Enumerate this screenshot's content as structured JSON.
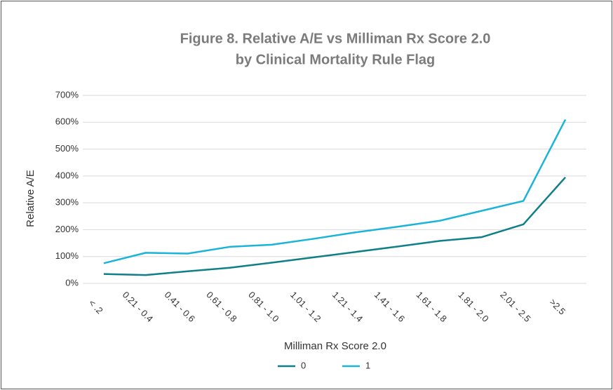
{
  "chart_data": {
    "type": "line",
    "title": [
      "Figure 8.  Relative A/E vs Milliman Rx Score 2.0",
      "by Clinical Mortality Rule Flag"
    ],
    "x_label": "Milliman Rx Score 2.0",
    "y_label": "Relative A/E",
    "categories": [
      "< .2",
      "0.21 - 0.4",
      "0.41 - 0.6",
      "0.61 - 0.8",
      "0.81 - 1.0",
      "1.01 - 1.2",
      "1.21 - 1.4",
      "1.41 - 1.6",
      "1.61 - 1.8",
      "1.81 - 2.0",
      "2.01 - 2.5",
      ">2.5"
    ],
    "series": [
      {
        "name": "0",
        "color": "#0f7f88",
        "values": [
          35,
          31,
          45,
          58,
          77,
          97,
          117,
          137,
          158,
          172,
          220,
          395
        ]
      },
      {
        "name": "1",
        "color": "#1ab4da",
        "values": [
          75,
          114,
          111,
          136,
          144,
          166,
          190,
          211,
          233,
          270,
          307,
          610
        ]
      }
    ],
    "ylim": [
      0,
      700
    ],
    "yticks": [
      {
        "value": 0,
        "label": "0%"
      },
      {
        "value": 100,
        "label": "100%"
      },
      {
        "value": 200,
        "label": "200%"
      },
      {
        "value": 300,
        "label": "300%"
      },
      {
        "value": 400,
        "label": "400%"
      },
      {
        "value": 500,
        "label": "500%"
      },
      {
        "value": 600,
        "label": "600%"
      },
      {
        "value": 700,
        "label": "700%"
      }
    ],
    "grid": true,
    "legend": "bottom"
  }
}
